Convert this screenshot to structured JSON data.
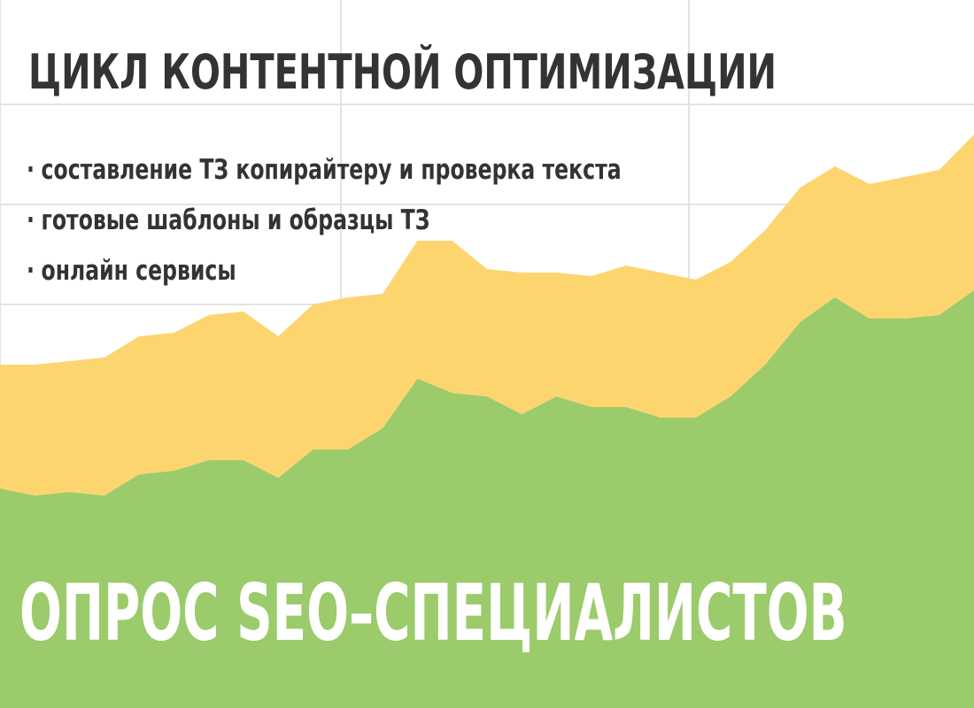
{
  "title": "ЦИКЛ КОНТЕНТНОЙ ОПТИМИЗАЦИИ",
  "bullets": [
    "составление ТЗ копирайтеру и проверка текста",
    "готовые шаблоны и образцы ТЗ",
    "онлайн сервисы"
  ],
  "bullet_symbol": "·",
  "footer": "ОПРОС SEO–СПЕЦИАЛИСТОВ",
  "colors": {
    "background": "#ffffff",
    "grid": "#e3e3e3",
    "green_area": "#9bcb6b",
    "yellow_area": "#fdd56f",
    "title_text": "#333333",
    "footer_text": "#ffffff"
  },
  "chart_data": {
    "type": "area",
    "stacked": true,
    "grid": true,
    "legend": "none",
    "x": [
      0,
      1,
      2,
      3,
      4,
      5,
      6,
      7,
      8,
      9,
      10,
      11,
      12,
      13,
      14,
      15,
      16,
      17,
      18,
      19,
      20,
      21,
      22,
      23,
      24,
      25,
      26,
      27,
      28
    ],
    "ylim": [
      0,
      10
    ],
    "series": [
      {
        "color": "#9bcb6b",
        "values": [
          3.1,
          3.0,
          3.05,
          3.0,
          3.3,
          3.35,
          3.5,
          3.5,
          3.25,
          3.65,
          3.65,
          3.95,
          4.65,
          4.45,
          4.4,
          4.15,
          4.4,
          4.25,
          4.25,
          4.1,
          4.1,
          4.4,
          4.85,
          5.45,
          5.8,
          5.5,
          5.5,
          5.55,
          5.9
        ]
      },
      {
        "color": "#fdd56f",
        "values": [
          1.75,
          1.85,
          1.85,
          1.95,
          1.95,
          1.95,
          2.05,
          2.1,
          2.0,
          2.05,
          2.15,
          1.9,
          1.95,
          2.15,
          1.8,
          2.0,
          1.75,
          1.85,
          2.0,
          2.05,
          1.95,
          1.9,
          1.9,
          1.9,
          1.85,
          1.9,
          2.0,
          2.05,
          2.2
        ]
      }
    ]
  }
}
